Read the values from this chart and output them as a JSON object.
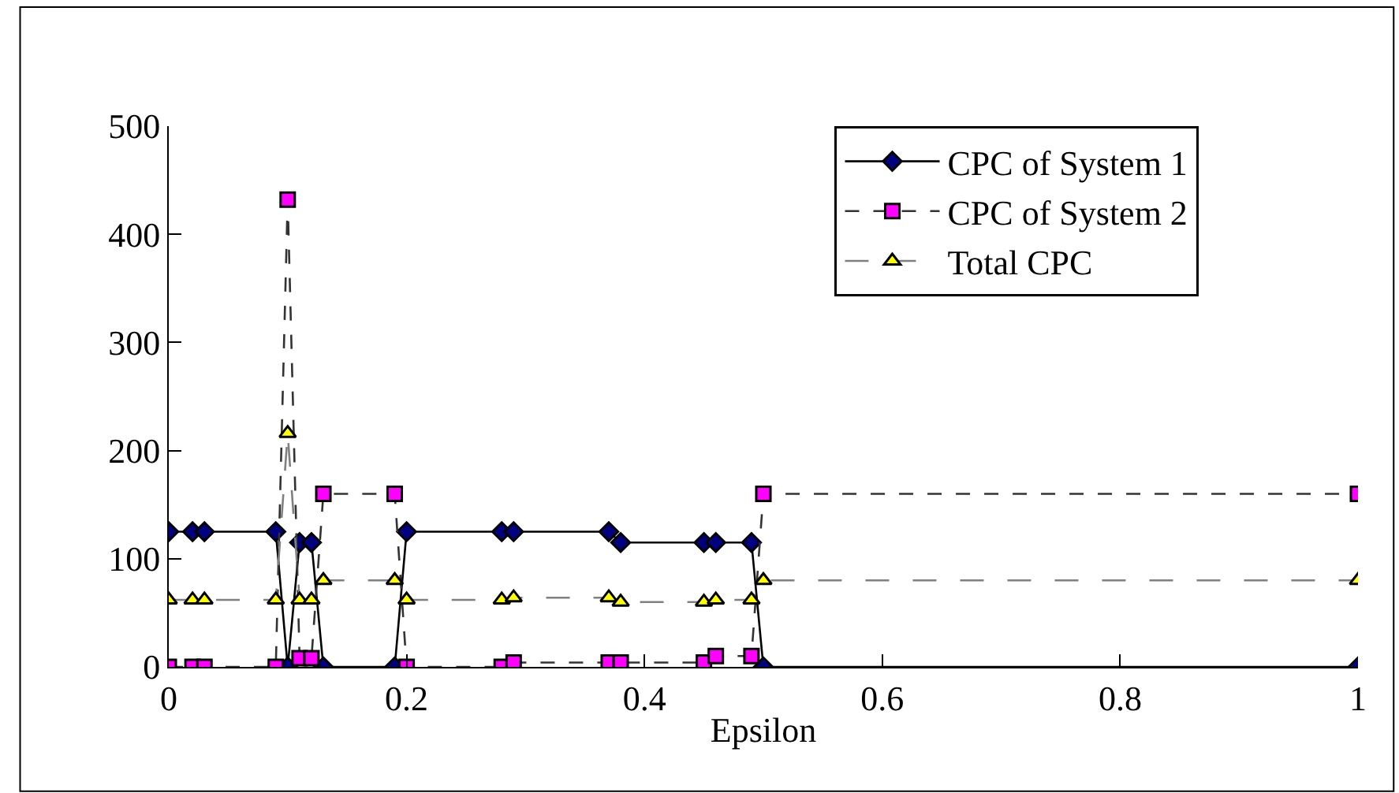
{
  "chart_data": {
    "type": "line",
    "xlabel": "Epsilon",
    "x": [
      0,
      0.02,
      0.03,
      0.09,
      0.1,
      0.11,
      0.12,
      0.13,
      0.19,
      0.2,
      0.28,
      0.29,
      0.37,
      0.38,
      0.45,
      0.46,
      0.49,
      0.5,
      1
    ],
    "series": [
      {
        "name": "CPC of System 1",
        "color": "#000080",
        "marker": "diamond",
        "line_style": "solid",
        "values": [
          125,
          125,
          125,
          125,
          0,
          115,
          115,
          0,
          0,
          125,
          125,
          125,
          125,
          115,
          115,
          115,
          115,
          0,
          0
        ]
      },
      {
        "name": "CPC of System 2",
        "color": "#ff00ff",
        "marker": "square",
        "line_style": "dashed",
        "values": [
          0,
          0,
          0,
          0,
          432,
          8,
          8,
          160,
          160,
          0,
          0,
          4,
          4,
          4,
          4,
          10,
          10,
          160,
          160
        ]
      },
      {
        "name": "Total CPC",
        "color": "#ffff00",
        "marker": "triangle",
        "line_style": "longdash",
        "values": [
          62,
          62,
          62,
          62,
          216,
          62,
          62,
          80,
          80,
          62,
          62,
          64,
          64,
          60,
          60,
          62,
          62,
          80,
          80
        ]
      }
    ],
    "xlim": [
      0,
      1
    ],
    "xticks": [
      0,
      0.2,
      0.4,
      0.6,
      0.8,
      1
    ],
    "ylim": [
      0,
      500
    ],
    "yticks": [
      0,
      100,
      200,
      300,
      400,
      500
    ],
    "grid": false,
    "legend": "top right"
  }
}
